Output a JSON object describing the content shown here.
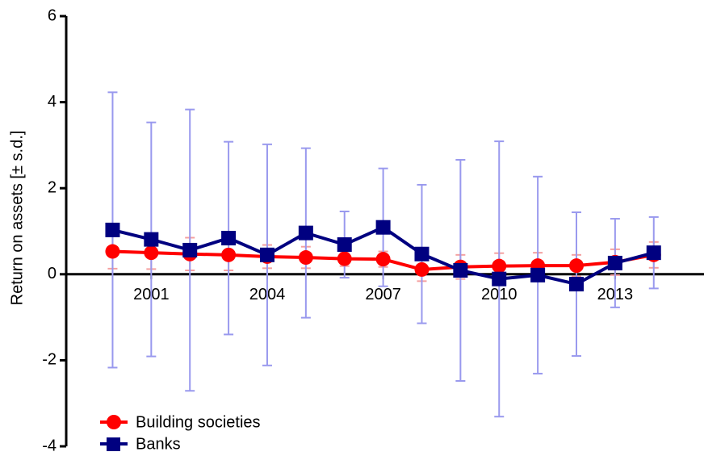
{
  "chart_data": {
    "type": "line",
    "y_label": "Return on assets [± s.d.]",
    "x": [
      2000,
      2001,
      2002,
      2003,
      2004,
      2005,
      2006,
      2007,
      2008,
      2009,
      2010,
      2011,
      2012,
      2013,
      2014
    ],
    "xlim": [
      1998.8,
      2015.3
    ],
    "xticks": [
      2001,
      2004,
      2007,
      2010,
      2013
    ],
    "ylim": [
      -4,
      6
    ],
    "yticks": [
      -4,
      -2,
      0,
      2,
      4,
      6
    ],
    "legend": "bottom-left",
    "series": [
      {
        "name": "Building societies",
        "color": "#ff0000",
        "error_color": "#f4a0a0",
        "marker": "circle",
        "values": [
          0.53,
          0.5,
          0.47,
          0.45,
          0.41,
          0.39,
          0.36,
          0.35,
          0.11,
          0.17,
          0.19,
          0.2,
          0.2,
          0.28,
          0.45
        ],
        "errors": [
          0.4,
          0.38,
          0.38,
          0.36,
          0.27,
          0.25,
          0.17,
          0.18,
          0.27,
          0.28,
          0.3,
          0.3,
          0.25,
          0.3,
          0.3
        ]
      },
      {
        "name": "Banks",
        "color": "#000080",
        "error_color": "#9999ee",
        "marker": "square",
        "values": [
          1.03,
          0.81,
          0.56,
          0.84,
          0.45,
          0.96,
          0.69,
          1.09,
          0.47,
          0.09,
          -0.11,
          -0.02,
          -0.23,
          0.26,
          0.5
        ],
        "errors": [
          3.2,
          2.72,
          3.27,
          2.24,
          2.57,
          1.97,
          0.77,
          1.37,
          1.61,
          2.57,
          3.2,
          2.29,
          1.67,
          1.03,
          0.83
        ]
      }
    ]
  }
}
